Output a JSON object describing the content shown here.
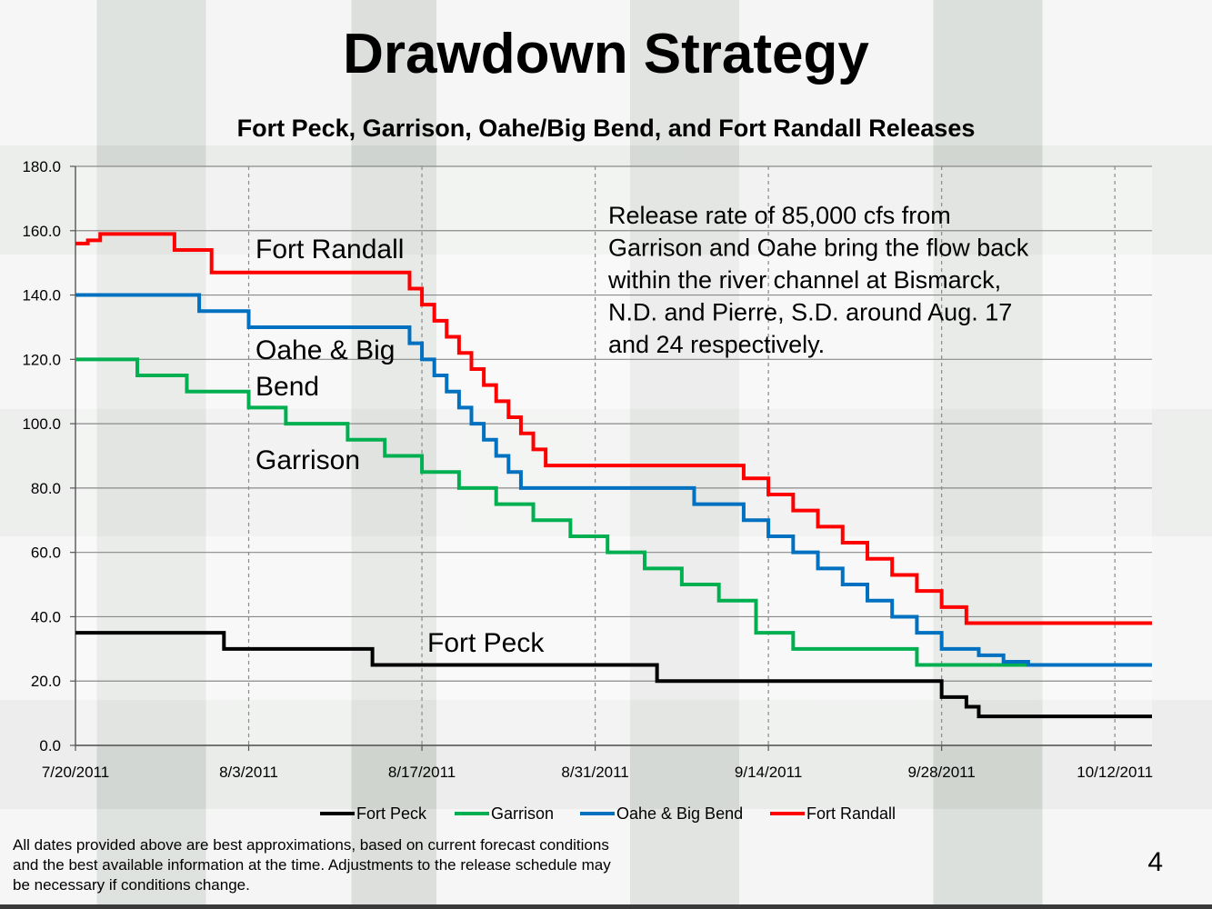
{
  "title": "Drawdown Strategy",
  "footnote": "All dates provided above are best approximations, based on current forecast conditions and the best available information at the time. Adjustments to the release schedule may be necessary if conditions change.",
  "slide_number": "4",
  "chart_data": {
    "type": "line",
    "title": "Fort Peck, Garrison, Oahe/Big Bend, and Fort Randall Releases",
    "xlabel": "",
    "ylabel": "",
    "x_range": [
      "7/20/2011",
      "10/15/2011"
    ],
    "ylim": [
      0,
      180
    ],
    "y_ticks": [
      "0.0",
      "20.0",
      "40.0",
      "60.0",
      "80.0",
      "100.0",
      "120.0",
      "140.0",
      "160.0",
      "180.0"
    ],
    "x_ticks": [
      "7/20/2011",
      "8/3/2011",
      "8/17/2011",
      "8/31/2011",
      "9/14/2011",
      "9/28/2011",
      "10/12/2011"
    ],
    "grid": "horizontal solid, vertical dashed",
    "legend_position": "bottom",
    "series": [
      {
        "name": "Fort Peck",
        "color": "#000000",
        "label": "Fort Peck",
        "steps": [
          [
            "7/20/2011",
            35
          ],
          [
            "8/1/2011",
            30
          ],
          [
            "8/13/2011",
            25
          ],
          [
            "9/5/2011",
            20
          ],
          [
            "9/28/2011",
            15
          ],
          [
            "9/30/2011",
            12
          ],
          [
            "10/1/2011",
            9
          ]
        ],
        "end": "10/15/2011"
      },
      {
        "name": "Garrison",
        "color": "#00b050",
        "label": "Garrison",
        "steps": [
          [
            "7/20/2011",
            120
          ],
          [
            "7/25/2011",
            115
          ],
          [
            "7/29/2011",
            110
          ],
          [
            "8/3/2011",
            105
          ],
          [
            "8/6/2011",
            100
          ],
          [
            "8/11/2011",
            95
          ],
          [
            "8/14/2011",
            90
          ],
          [
            "8/17/2011",
            85
          ],
          [
            "8/20/2011",
            80
          ],
          [
            "8/23/2011",
            75
          ],
          [
            "8/26/2011",
            70
          ],
          [
            "8/29/2011",
            65
          ],
          [
            "9/1/2011",
            60
          ],
          [
            "9/4/2011",
            55
          ],
          [
            "9/7/2011",
            50
          ],
          [
            "9/10/2011",
            45
          ],
          [
            "9/13/2011",
            35
          ],
          [
            "9/16/2011",
            30
          ],
          [
            "9/26/2011",
            25
          ]
        ],
        "end": "10/5/2011"
      },
      {
        "name": "Oahe & Big Bend",
        "color": "#0070c0",
        "label": "Oahe & Big\nBend",
        "steps": [
          [
            "7/20/2011",
            140
          ],
          [
            "7/30/2011",
            135
          ],
          [
            "8/3/2011",
            130
          ],
          [
            "8/16/2011",
            125
          ],
          [
            "8/17/2011",
            120
          ],
          [
            "8/18/2011",
            115
          ],
          [
            "8/19/2011",
            110
          ],
          [
            "8/20/2011",
            105
          ],
          [
            "8/21/2011",
            100
          ],
          [
            "8/22/2011",
            95
          ],
          [
            "8/23/2011",
            90
          ],
          [
            "8/24/2011",
            85
          ],
          [
            "8/25/2011",
            80
          ],
          [
            "9/8/2011",
            75
          ],
          [
            "9/12/2011",
            70
          ],
          [
            "9/14/2011",
            65
          ],
          [
            "9/16/2011",
            60
          ],
          [
            "9/18/2011",
            55
          ],
          [
            "9/20/2011",
            50
          ],
          [
            "9/22/2011",
            45
          ],
          [
            "9/24/2011",
            40
          ],
          [
            "9/26/2011",
            35
          ],
          [
            "9/28/2011",
            30
          ],
          [
            "10/1/2011",
            28
          ],
          [
            "10/3/2011",
            26
          ],
          [
            "10/5/2011",
            25
          ]
        ],
        "end": "10/15/2011"
      },
      {
        "name": "Fort Randall",
        "color": "#ff0000",
        "label": "Fort Randall",
        "steps": [
          [
            "7/20/2011",
            156
          ],
          [
            "7/21/2011",
            157
          ],
          [
            "7/22/2011",
            159
          ],
          [
            "7/28/2011",
            154
          ],
          [
            "7/31/2011",
            147
          ],
          [
            "8/16/2011",
            142
          ],
          [
            "8/17/2011",
            137
          ],
          [
            "8/18/2011",
            132
          ],
          [
            "8/19/2011",
            127
          ],
          [
            "8/20/2011",
            122
          ],
          [
            "8/21/2011",
            117
          ],
          [
            "8/22/2011",
            112
          ],
          [
            "8/23/2011",
            107
          ],
          [
            "8/24/2011",
            102
          ],
          [
            "8/25/2011",
            97
          ],
          [
            "8/26/2011",
            92
          ],
          [
            "8/27/2011",
            87
          ],
          [
            "9/12/2011",
            83
          ],
          [
            "9/14/2011",
            78
          ],
          [
            "9/16/2011",
            73
          ],
          [
            "9/18/2011",
            68
          ],
          [
            "9/20/2011",
            63
          ],
          [
            "9/22/2011",
            58
          ],
          [
            "9/24/2011",
            53
          ],
          [
            "9/26/2011",
            48
          ],
          [
            "9/28/2011",
            43
          ],
          [
            "9/30/2011",
            38
          ]
        ],
        "end": "10/15/2011"
      }
    ],
    "annotation": "Release rate of 85,000 cfs from\nGarrison and Oahe bring the flow back\nwithin the river channel at Bismarck,\nN.D. and Pierre, S.D. around Aug. 17\nand 24 respectively."
  }
}
